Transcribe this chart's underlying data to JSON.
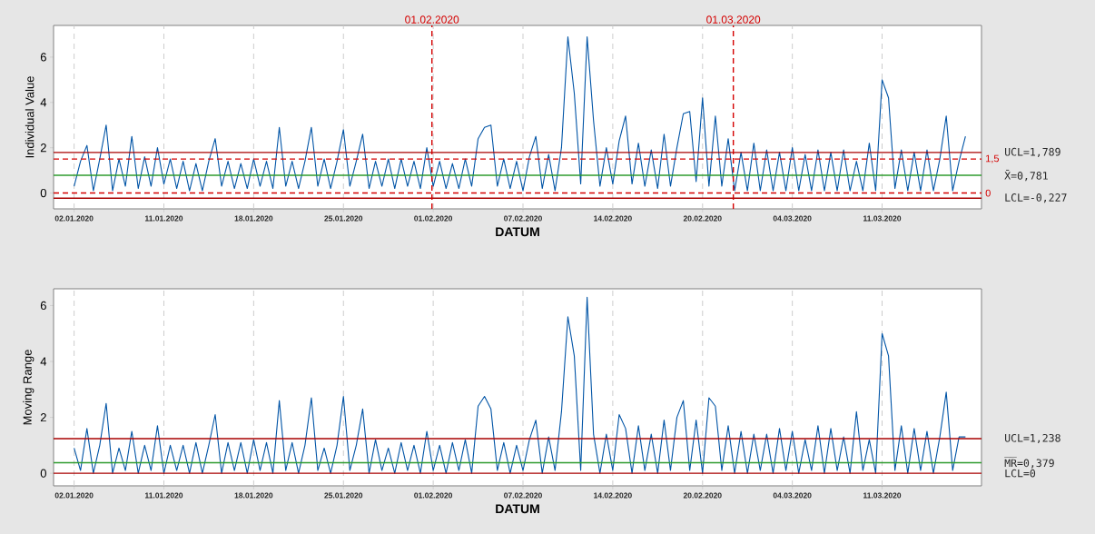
{
  "chart_data": [
    {
      "type": "line",
      "xlabel": "DATUM",
      "ylabel": "Individual Value",
      "grid": "x",
      "ylim": [
        -0.7,
        7.4
      ],
      "yticks": [
        0,
        2,
        4,
        6
      ],
      "categories": [
        "02.01.2020",
        null,
        null,
        null,
        null,
        null,
        null,
        null,
        null,
        null,
        null,
        null,
        null,
        null,
        "11.01.2020",
        null,
        null,
        null,
        null,
        null,
        null,
        null,
        null,
        null,
        null,
        null,
        null,
        null,
        "18.01.2020",
        null,
        null,
        null,
        null,
        null,
        null,
        null,
        null,
        null,
        null,
        null,
        null,
        null,
        "25.01.2020",
        null,
        null,
        null,
        null,
        null,
        null,
        null,
        null,
        null,
        null,
        null,
        null,
        null,
        "01.02.2020",
        null,
        null,
        null,
        null,
        null,
        null,
        null,
        null,
        null,
        null,
        null,
        null,
        null,
        "07.02.2020",
        null,
        null,
        null,
        null,
        null,
        null,
        null,
        null,
        null,
        null,
        null,
        null,
        null,
        "14.02.2020",
        null,
        null,
        null,
        null,
        null,
        null,
        null,
        null,
        null,
        null,
        null,
        null,
        null,
        "20.02.2020",
        null,
        null,
        null,
        null,
        null,
        null,
        null,
        null,
        null,
        null,
        null,
        null,
        null,
        "04.03.2020",
        null,
        null,
        null,
        null,
        null,
        null,
        null,
        null,
        null,
        null,
        null,
        null,
        null,
        "11.03.2020",
        null,
        null,
        null,
        null,
        null,
        null,
        null,
        null,
        null,
        null,
        null,
        null,
        null
      ],
      "annotations": [
        "01.02.2020",
        "01.03.2020"
      ],
      "ref_lines": [
        {
          "axis": "y",
          "value": 1.789,
          "label": "UCL=1,789",
          "color": "#a80000",
          "line_style": "solid"
        },
        {
          "axis": "y",
          "value": 0.781,
          "label": "X̄=0,781",
          "color": "#2e9b2e",
          "line_style": "solid"
        },
        {
          "axis": "y",
          "value": -0.227,
          "label": "LCL=-0,227",
          "color": "#a80000",
          "line_style": "solid"
        },
        {
          "axis": "y",
          "value": 1.5,
          "label": "1,5",
          "color": "#d40000",
          "line_style": "dashed"
        },
        {
          "axis": "y",
          "value": 0,
          "label": "0",
          "color": "#d40000",
          "line_style": "dashed"
        }
      ],
      "series": [
        {
          "color": "#0054a6",
          "values": [
            0.3,
            1.4,
            2.1,
            0.1,
            1.5,
            3.0,
            0.1,
            1.5,
            0.3,
            2.5,
            0.2,
            1.6,
            0.3,
            2.0,
            0.4,
            1.5,
            0.2,
            1.4,
            0.1,
            1.3,
            0.1,
            1.4,
            2.4,
            0.3,
            1.4,
            0.2,
            1.3,
            0.2,
            1.5,
            0.3,
            1.4,
            0.2,
            2.9,
            0.3,
            1.4,
            0.2,
            1.4,
            2.9,
            0.3,
            1.5,
            0.2,
            1.4,
            2.8,
            0.3,
            1.4,
            2.6,
            0.2,
            1.4,
            0.3,
            1.5,
            0.2,
            1.5,
            0.3,
            1.4,
            0.2,
            2.0,
            0.3,
            1.4,
            0.2,
            1.3,
            0.2,
            1.5,
            0.3,
            2.4,
            2.9,
            3.0,
            0.3,
            1.5,
            0.2,
            1.4,
            0.1,
            1.6,
            2.5,
            0.2,
            1.7,
            0.1,
            2.0,
            6.9,
            4.4,
            0.4,
            6.9,
            3.2,
            0.3,
            2.0,
            0.4,
            2.3,
            3.4,
            0.4,
            2.2,
            0.3,
            1.9,
            0.2,
            2.6,
            0.3,
            2.0,
            3.5,
            3.6,
            0.5,
            4.2,
            0.3,
            3.4,
            0.3,
            2.4,
            0.1,
            1.8,
            0.1,
            2.2,
            0.1,
            1.9,
            0.1,
            1.8,
            0.1,
            2.0,
            0.1,
            1.7,
            0.1,
            1.9,
            0.1,
            1.8,
            0.1,
            1.9,
            0.1,
            1.4,
            0.1,
            2.2,
            0.1,
            5.0,
            4.2,
            0.2,
            1.9,
            0.1,
            1.8,
            0.1,
            1.9,
            0.1,
            1.5,
            3.4,
            0.1,
            1.4,
            2.5
          ]
        }
      ]
    },
    {
      "type": "line",
      "xlabel": "DATUM",
      "ylabel": "Moving Range",
      "grid": "x",
      "ylim": [
        -0.45,
        6.6
      ],
      "yticks": [
        0,
        2,
        4,
        6
      ],
      "categories": [
        "02.01.2020",
        null,
        null,
        null,
        null,
        null,
        null,
        null,
        null,
        null,
        null,
        null,
        null,
        null,
        "11.01.2020",
        null,
        null,
        null,
        null,
        null,
        null,
        null,
        null,
        null,
        null,
        null,
        null,
        null,
        "18.01.2020",
        null,
        null,
        null,
        null,
        null,
        null,
        null,
        null,
        null,
        null,
        null,
        null,
        null,
        "25.01.2020",
        null,
        null,
        null,
        null,
        null,
        null,
        null,
        null,
        null,
        null,
        null,
        null,
        null,
        "01.02.2020",
        null,
        null,
        null,
        null,
        null,
        null,
        null,
        null,
        null,
        null,
        null,
        null,
        null,
        "07.02.2020",
        null,
        null,
        null,
        null,
        null,
        null,
        null,
        null,
        null,
        null,
        null,
        null,
        null,
        "14.02.2020",
        null,
        null,
        null,
        null,
        null,
        null,
        null,
        null,
        null,
        null,
        null,
        null,
        null,
        "20.02.2020",
        null,
        null,
        null,
        null,
        null,
        null,
        null,
        null,
        null,
        null,
        null,
        null,
        null,
        "04.03.2020",
        null,
        null,
        null,
        null,
        null,
        null,
        null,
        null,
        null,
        null,
        null,
        null,
        null,
        "11.03.2020",
        null,
        null,
        null,
        null,
        null,
        null,
        null,
        null,
        null,
        null,
        null,
        null,
        null
      ],
      "ref_lines": [
        {
          "axis": "y",
          "value": 1.238,
          "label": "UCL=1,238",
          "color": "#a80000",
          "line_style": "solid"
        },
        {
          "axis": "y",
          "value": 0.379,
          "label": "M̅R̅=0,379",
          "color": "#2e9b2e",
          "line_style": "solid"
        },
        {
          "axis": "y",
          "value": 0,
          "label": "LCL=0",
          "color": "#a80000",
          "line_style": "solid"
        }
      ],
      "series": [
        {
          "color": "#0054a6",
          "values": [
            0.9,
            0.1,
            1.6,
            0.0,
            1.0,
            2.5,
            0.0,
            0.9,
            0.1,
            1.5,
            0.0,
            1.0,
            0.1,
            1.7,
            0.0,
            1.0,
            0.1,
            1.0,
            0.0,
            1.1,
            0.0,
            1.0,
            2.1,
            0.0,
            1.1,
            0.1,
            1.1,
            0.0,
            1.2,
            0.1,
            1.1,
            0.0,
            2.6,
            0.1,
            1.1,
            0.0,
            1.0,
            2.7,
            0.1,
            0.9,
            0.0,
            1.0,
            2.75,
            0.1,
            1.0,
            2.3,
            0.0,
            1.2,
            0.1,
            0.9,
            0.0,
            1.1,
            0.1,
            1.0,
            0.0,
            1.5,
            0.1,
            1.0,
            0.0,
            1.1,
            0.1,
            1.2,
            0.0,
            2.4,
            2.75,
            2.3,
            0.1,
            1.1,
            0.0,
            1.0,
            0.1,
            1.2,
            1.9,
            0.0,
            1.3,
            0.1,
            2.2,
            5.6,
            4.2,
            0.1,
            6.3,
            1.4,
            0.0,
            1.4,
            0.1,
            2.1,
            1.6,
            0.0,
            1.7,
            0.1,
            1.4,
            0.0,
            1.9,
            0.1,
            2.0,
            2.6,
            0.1,
            1.9,
            0.0,
            2.7,
            2.4,
            0.1,
            1.7,
            0.0,
            1.5,
            0.0,
            1.4,
            0.1,
            1.4,
            0.0,
            1.6,
            0.1,
            1.5,
            0.0,
            1.2,
            0.1,
            1.7,
            0.0,
            1.6,
            0.1,
            1.3,
            0.0,
            2.2,
            0.1,
            1.2,
            0.0,
            5.0,
            4.2,
            0.1,
            1.7,
            0.0,
            1.6,
            0.1,
            1.5,
            0.0,
            1.3,
            2.9,
            0.1,
            1.3,
            1.3
          ]
        }
      ]
    }
  ]
}
